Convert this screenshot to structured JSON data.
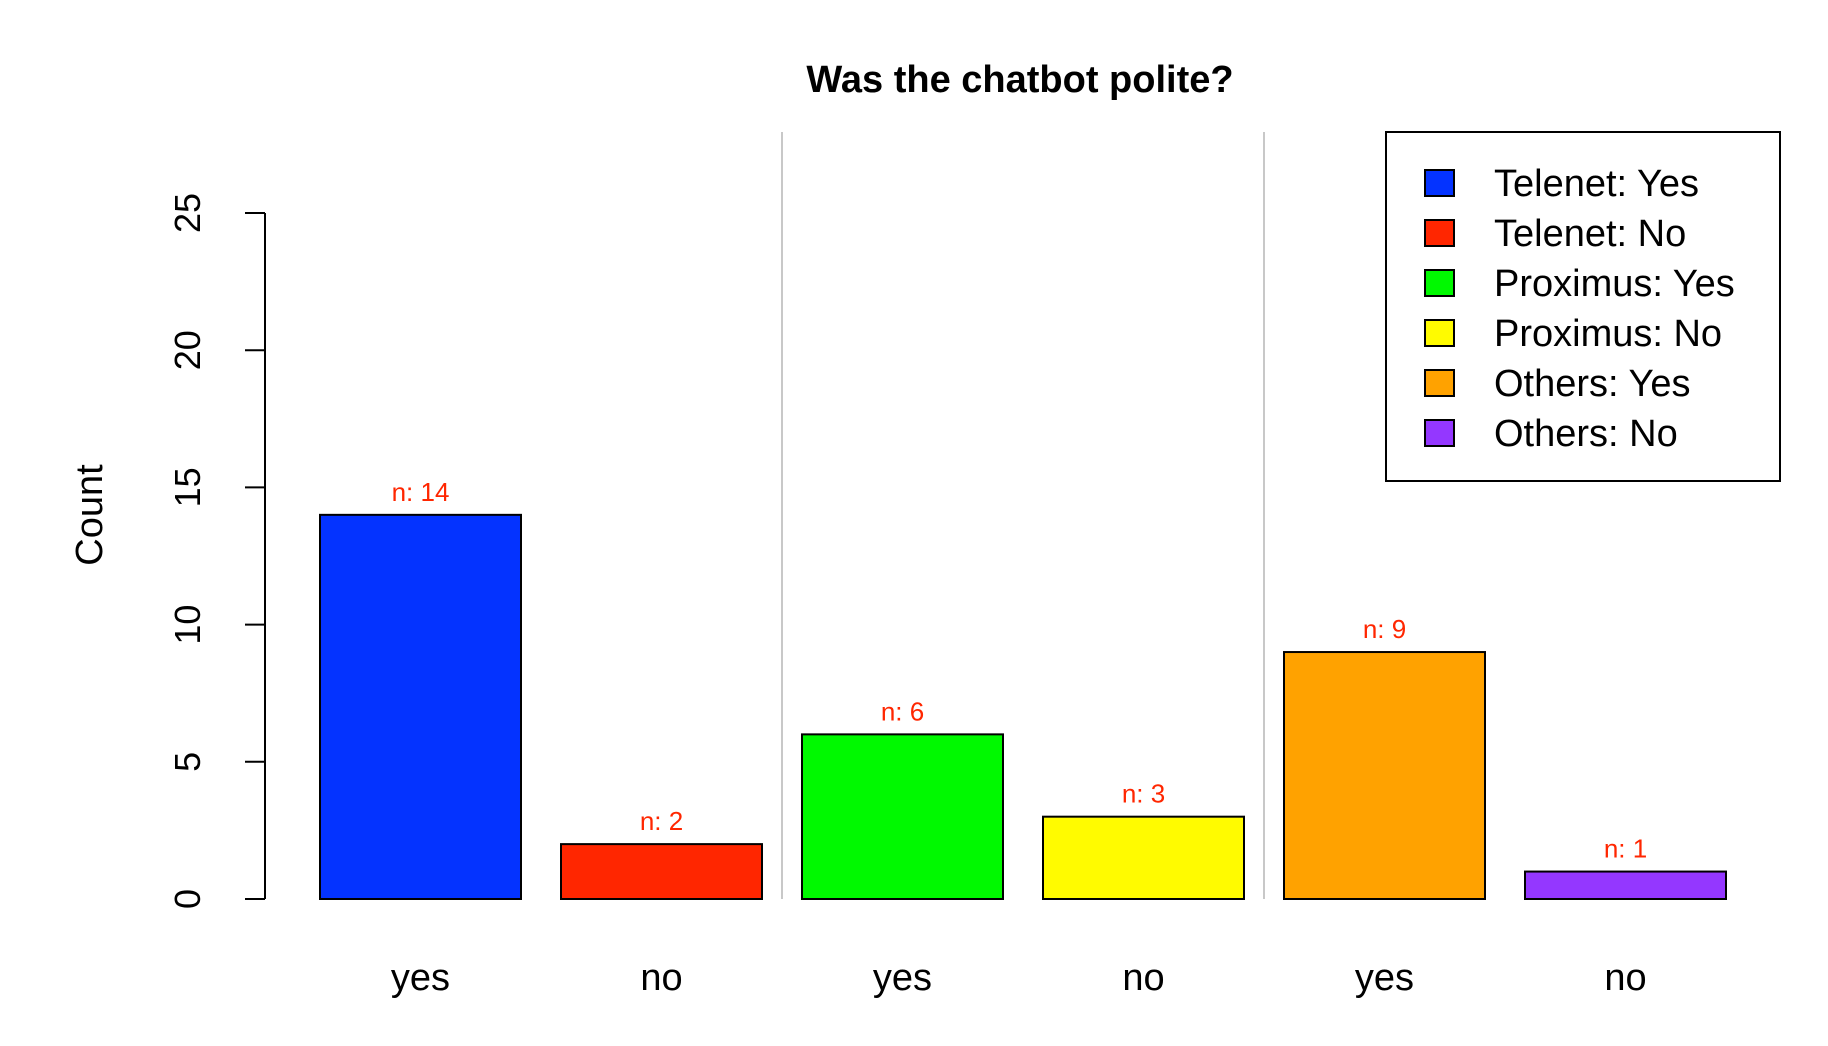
{
  "chart_data": {
    "type": "bar",
    "title": "Was the chatbot polite?",
    "xlabel": "",
    "ylabel": "Count",
    "ylim": [
      0,
      25
    ],
    "yticks": [
      0,
      5,
      10,
      15,
      20,
      25
    ],
    "categories": [
      "yes",
      "no",
      "yes",
      "no",
      "yes",
      "no"
    ],
    "values": [
      14,
      2,
      6,
      3,
      9,
      1
    ],
    "data_labels": [
      "n: 14",
      "n: 2",
      "n: 6",
      "n: 3",
      "n: 9",
      "n: 1"
    ],
    "colors": [
      "#0433FF",
      "#FF2600",
      "#00F900",
      "#FFFB00",
      "#FFA200",
      "#9437FF"
    ],
    "label_color": "#FF2600",
    "group_separators_after": [
      1,
      3
    ],
    "separator_color": "#C8C8C8",
    "legend": {
      "placement": "top-right",
      "entries": [
        {
          "label": "Telenet: Yes",
          "color": "#0433FF"
        },
        {
          "label": "Telenet: No",
          "color": "#FF2600"
        },
        {
          "label": "Proximus: Yes",
          "color": "#00F900"
        },
        {
          "label": "Proximus: No",
          "color": "#FFFB00"
        },
        {
          "label": "Others: Yes",
          "color": "#FFA200"
        },
        {
          "label": "Others: No",
          "color": "#9437FF"
        }
      ]
    },
    "grid": false
  }
}
